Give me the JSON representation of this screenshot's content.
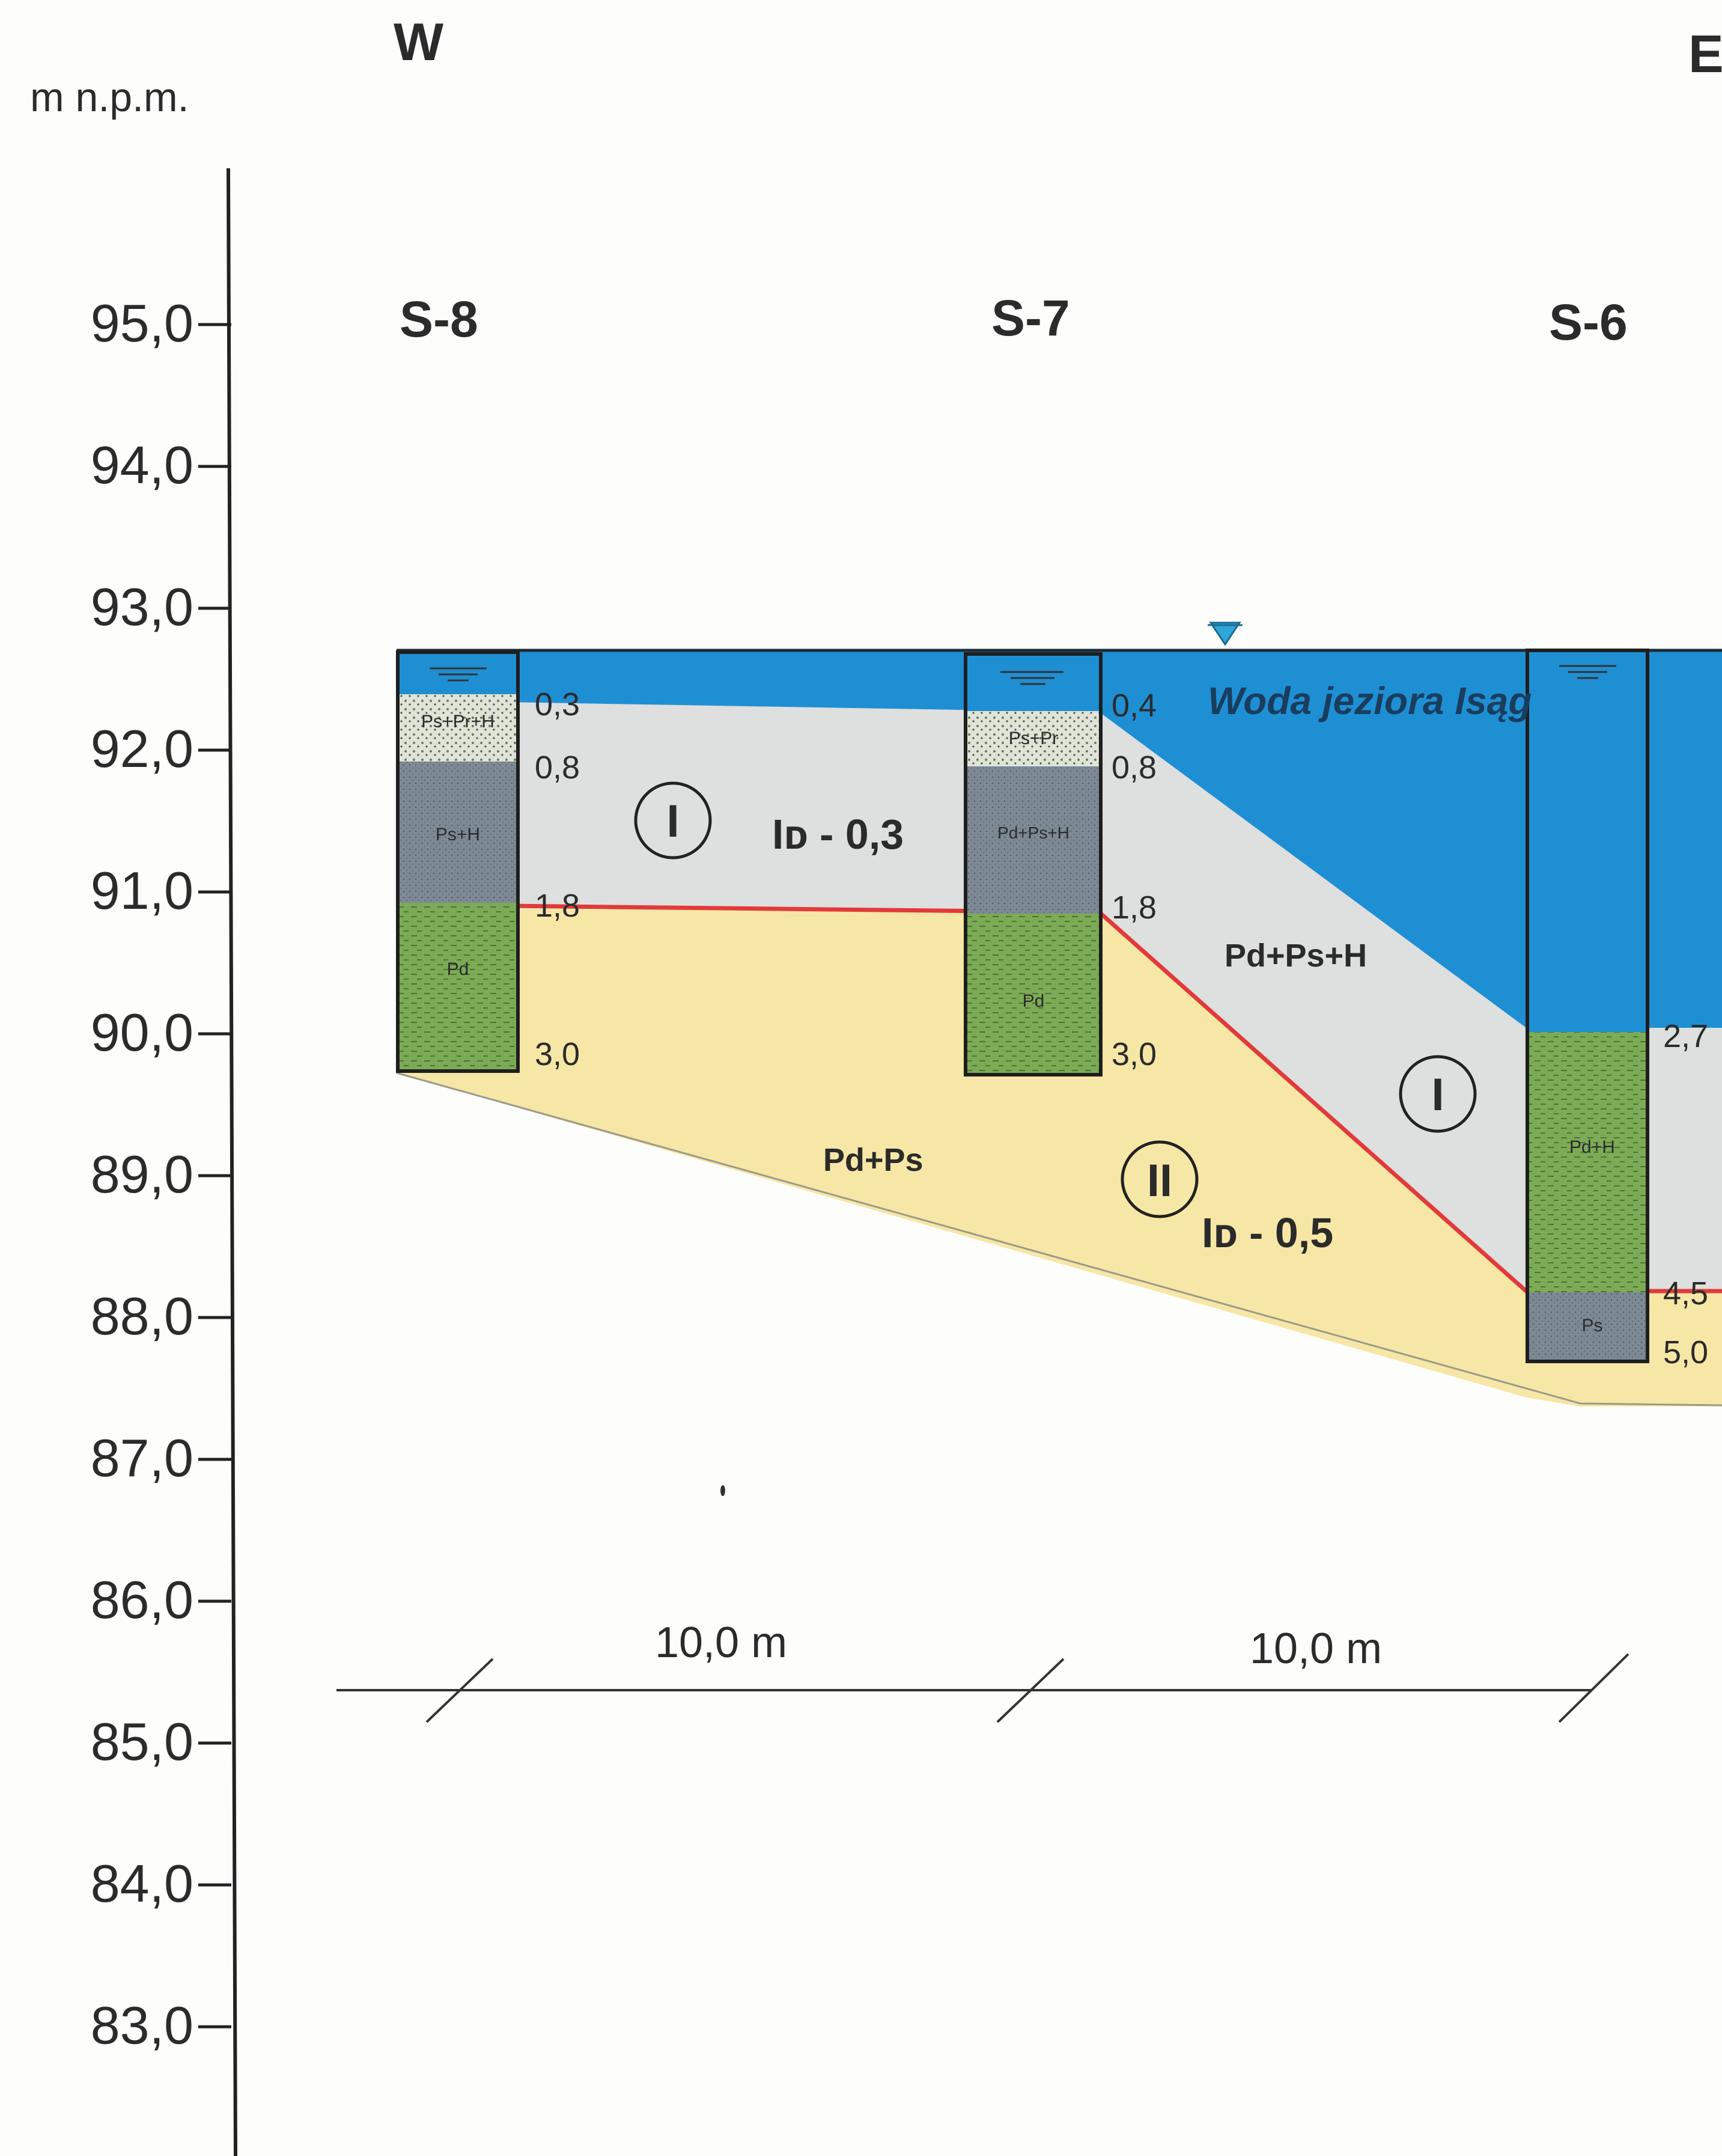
{
  "directions": {
    "west": "W",
    "east": "E"
  },
  "axis": {
    "unit_label": "m n.p.m.",
    "ticks": [
      "95,0",
      "94,0",
      "93,0",
      "92,0",
      "91,0",
      "90,0",
      "89,0",
      "88,0",
      "87,0",
      "86,0",
      "85,0",
      "84,0",
      "83,0"
    ]
  },
  "boreholes": [
    {
      "id": "S-8",
      "depths": [
        "0,3",
        "0,8",
        "1,8",
        "3,0"
      ],
      "layers": [
        "Ps+Pr+H",
        "Ps+H",
        "Pd"
      ]
    },
    {
      "id": "S-7",
      "depths": [
        "0,4",
        "0,8",
        "1,8",
        "3,0"
      ],
      "layers": [
        "Ps+Pr",
        "Pd+Ps+H",
        "Pd"
      ]
    },
    {
      "id": "S-6",
      "depths": [
        "2,7",
        "4,5",
        "5,0"
      ],
      "layers": [
        "Pd+H",
        "Ps"
      ]
    }
  ],
  "zones": {
    "water_label": "Woda jeziora Isąg",
    "layer_I": {
      "marker": "I",
      "index": "Iᴅ - 0,3",
      "soil": "Pd+Ps+H"
    },
    "layer_II": {
      "marker": "II",
      "index": "Iᴅ - 0,5",
      "soil": "Pd+Ps"
    }
  },
  "scale": {
    "segment_1": "10,0 m",
    "segment_2": "10,0 m"
  },
  "colors": {
    "water": "#1f8fd4",
    "layer_I": "#dedfdf",
    "layer_II": "#f7e7a6",
    "boundary": "#e23a3a",
    "pd_fill": "#7cab55",
    "ps_fill": "#7d8a95",
    "mix_fill": "#d9ddd6"
  }
}
